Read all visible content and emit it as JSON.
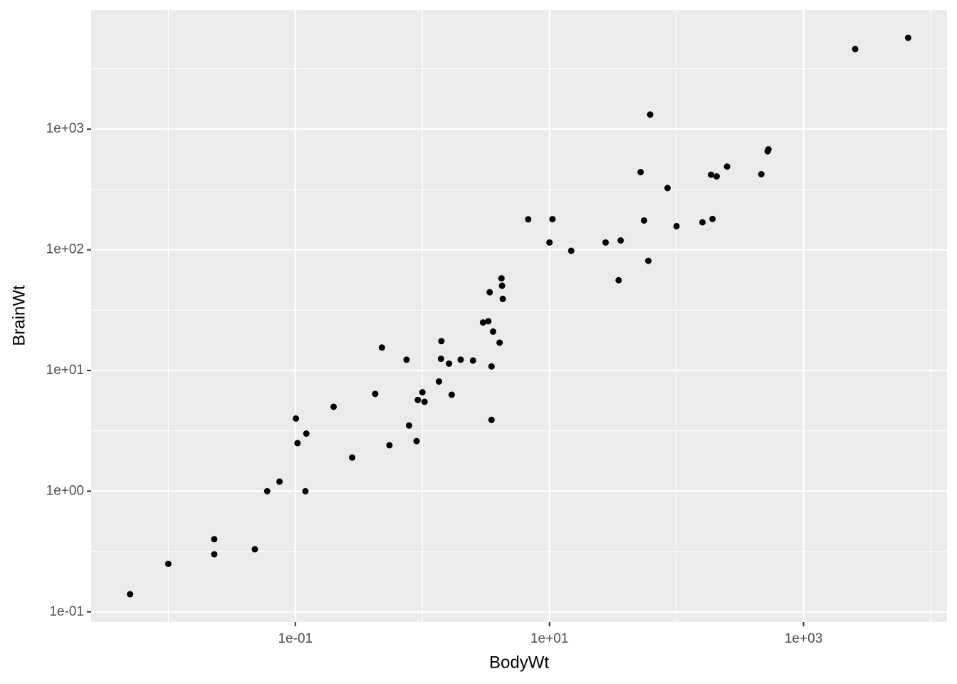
{
  "chart_data": {
    "type": "scatter",
    "x_label": "BodyWt",
    "y_label": "BrainWt",
    "log_x": true,
    "log_y": true,
    "grid": true,
    "color": "#000000",
    "xlim": [
      0.00247,
      13460
    ],
    "ylim": [
      0.0824,
      9710
    ],
    "xticks": [
      {
        "value": 0.1,
        "label": "1e-01"
      },
      {
        "value": 10,
        "label": "1e+01"
      },
      {
        "value": 1000,
        "label": "1e+03"
      }
    ],
    "yticks": [
      {
        "value": 0.1,
        "label": "1e-01"
      },
      {
        "value": 1,
        "label": "1e+00"
      },
      {
        "value": 10,
        "label": "1e+01"
      },
      {
        "value": 100,
        "label": "1e+02"
      },
      {
        "value": 1000,
        "label": "1e+03"
      }
    ],
    "minor_xticks": [
      0.01,
      1,
      100,
      10000
    ],
    "minor_yticks": [
      0.3162,
      3.162,
      31.62,
      316.2,
      3162
    ],
    "x": [
      3.385,
      0.48,
      1.35,
      465,
      36.33,
      27.66,
      14.83,
      1.04,
      4.19,
      0.425,
      0.101,
      0.92,
      1,
      0.005,
      0.06,
      3.5,
      2,
      1.7,
      2547,
      0.023,
      187.1,
      521,
      0.785,
      10,
      3.3,
      0.2,
      1.41,
      529,
      207,
      85,
      0.75,
      62,
      6654,
      3.5,
      6.8,
      35,
      4.05,
      0.12,
      0.023,
      0.01,
      1.4,
      250,
      2.5,
      55.5,
      100,
      52.16,
      10.55,
      0.55,
      60,
      3.6,
      4.288,
      0.28,
      0.075,
      0.122,
      0.048,
      192,
      3,
      160,
      0.9,
      1.62,
      0.104,
      4.235
    ],
    "values": [
      44.5,
      15.5,
      8.1,
      423,
      119.5,
      115,
      98.2,
      5.5,
      58,
      6.4,
      4,
      5.7,
      6.6,
      0.14,
      1,
      10.8,
      12.3,
      6.3,
      4603,
      0.3,
      419,
      655,
      3.5,
      115,
      25.6,
      5,
      17.5,
      680,
      406,
      325,
      12.3,
      1320,
      5712,
      3.9,
      179,
      56,
      17,
      1,
      0.4,
      0.25,
      12.5,
      490,
      12.1,
      175,
      157,
      440,
      179.5,
      2.4,
      81,
      21,
      39.2,
      1.9,
      1.2,
      3,
      0.33,
      180,
      25,
      169,
      2.6,
      11.4,
      2.5,
      50.4
    ]
  }
}
